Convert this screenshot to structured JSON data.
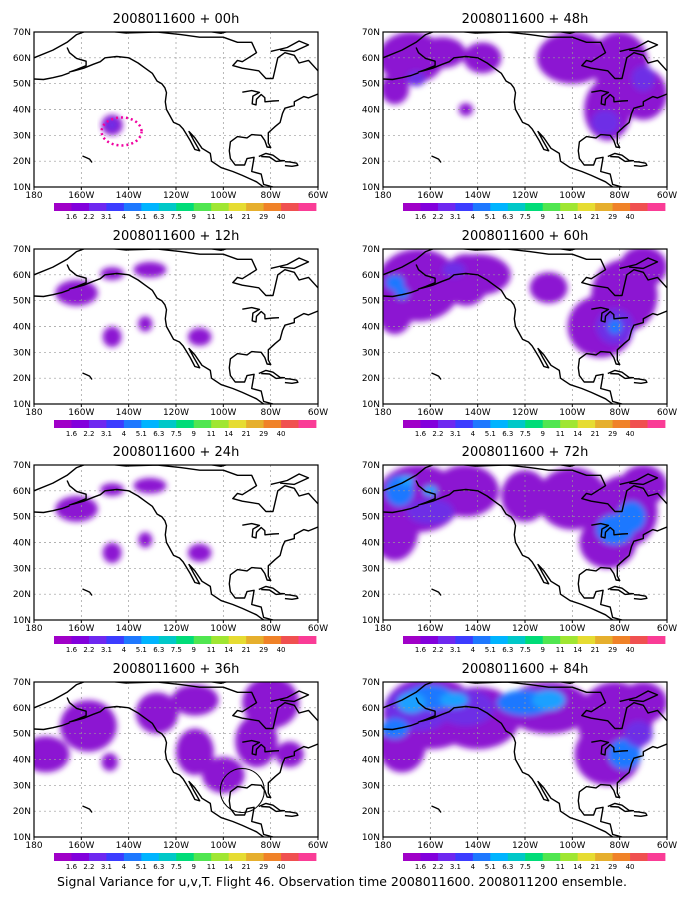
{
  "panels": [
    {
      "title": "2008011600 + 00h",
      "level": 0
    },
    {
      "title": "2008011600 + 48h",
      "level": 3
    },
    {
      "title": "2008011600 + 12h",
      "level": 1
    },
    {
      "title": "2008011600 + 60h",
      "level": 4
    },
    {
      "title": "2008011600 + 24h",
      "level": 1
    },
    {
      "title": "2008011600 + 72h",
      "level": 5
    },
    {
      "title": "2008011600 + 36h",
      "level": 2
    },
    {
      "title": "2008011600 + 84h",
      "level": 6
    }
  ],
  "x_ticks": [
    "180",
    "160W",
    "140W",
    "120W",
    "100W",
    "80W",
    "60W"
  ],
  "y_ticks": [
    "10N",
    "20N",
    "30N",
    "40N",
    "50N",
    "60N",
    "70N"
  ],
  "colorbar": {
    "labels": [
      "1.6",
      "2.2",
      "3.1",
      "4",
      "5.1",
      "6.3",
      "7.5",
      "9",
      "11",
      "14",
      "21",
      "29",
      "40"
    ],
    "colors": [
      "#a000c8",
      "#8200dc",
      "#6e28f0",
      "#3c3cff",
      "#1e78ff",
      "#00b4ff",
      "#00c8c8",
      "#00dc78",
      "#50e650",
      "#a0e632",
      "#e6dc32",
      "#e6af2d",
      "#f08228",
      "#f05050",
      "#fa3c96"
    ]
  },
  "colors": {
    "land_line": "#000000",
    "grid": "#999999",
    "signal_low": "#8c19d2",
    "signal_mid": "#6e2de6",
    "signal_high": "#1e78ff",
    "signal_top": "#1ea0ff",
    "observation_marker": "#f000a0"
  },
  "caption": "Signal Variance for u,v,T. Flight 46. Observation time 2008011600. 2008011200 ensemble."
}
